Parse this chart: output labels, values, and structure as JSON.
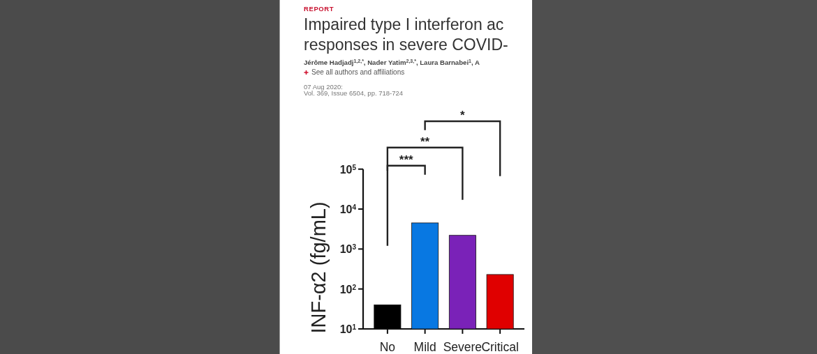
{
  "chart_data": {
    "type": "bar",
    "subtitle": "REPORT",
    "title": "Impaired type I interferon ac\nresponses in severe COVID-",
    "annotations": [
      "Jérôme Hadjadj$^{1,2,*}$, Nader Yatim$^{2,3,*}$, Laura Barnabei$^{1}$, A",
      "See all authors and affiliations",
      "07 Aug 2020:",
      "Vol. 369, Issue 6504, pp. 718-724",
      "***",
      "**",
      "*"
    ],
    "ylabel": "INF-α2 (fg/mL)",
    "categories": [
      "No",
      "Mild",
      "Severe",
      "Critical"
    ],
    "values": [
      40,
      4500,
      2200,
      230
    ],
    "colors": [
      "#000000",
      "#0878e2",
      "#7a22b8",
      "#e00000"
    ],
    "log": true,
    "ylim": [
      10,
      100000
    ],
    "yticks": [
      {
        "value": 10,
        "label": "10$^{1}$"
      },
      {
        "value": 100,
        "label": "10$^{2}$"
      },
      {
        "value": 1000,
        "label": "10$^{3}$"
      },
      {
        "value": 10000,
        "label": "10$^{4}$"
      },
      {
        "value": 100000,
        "label": "10$^{5}$"
      }
    ]
  }
}
